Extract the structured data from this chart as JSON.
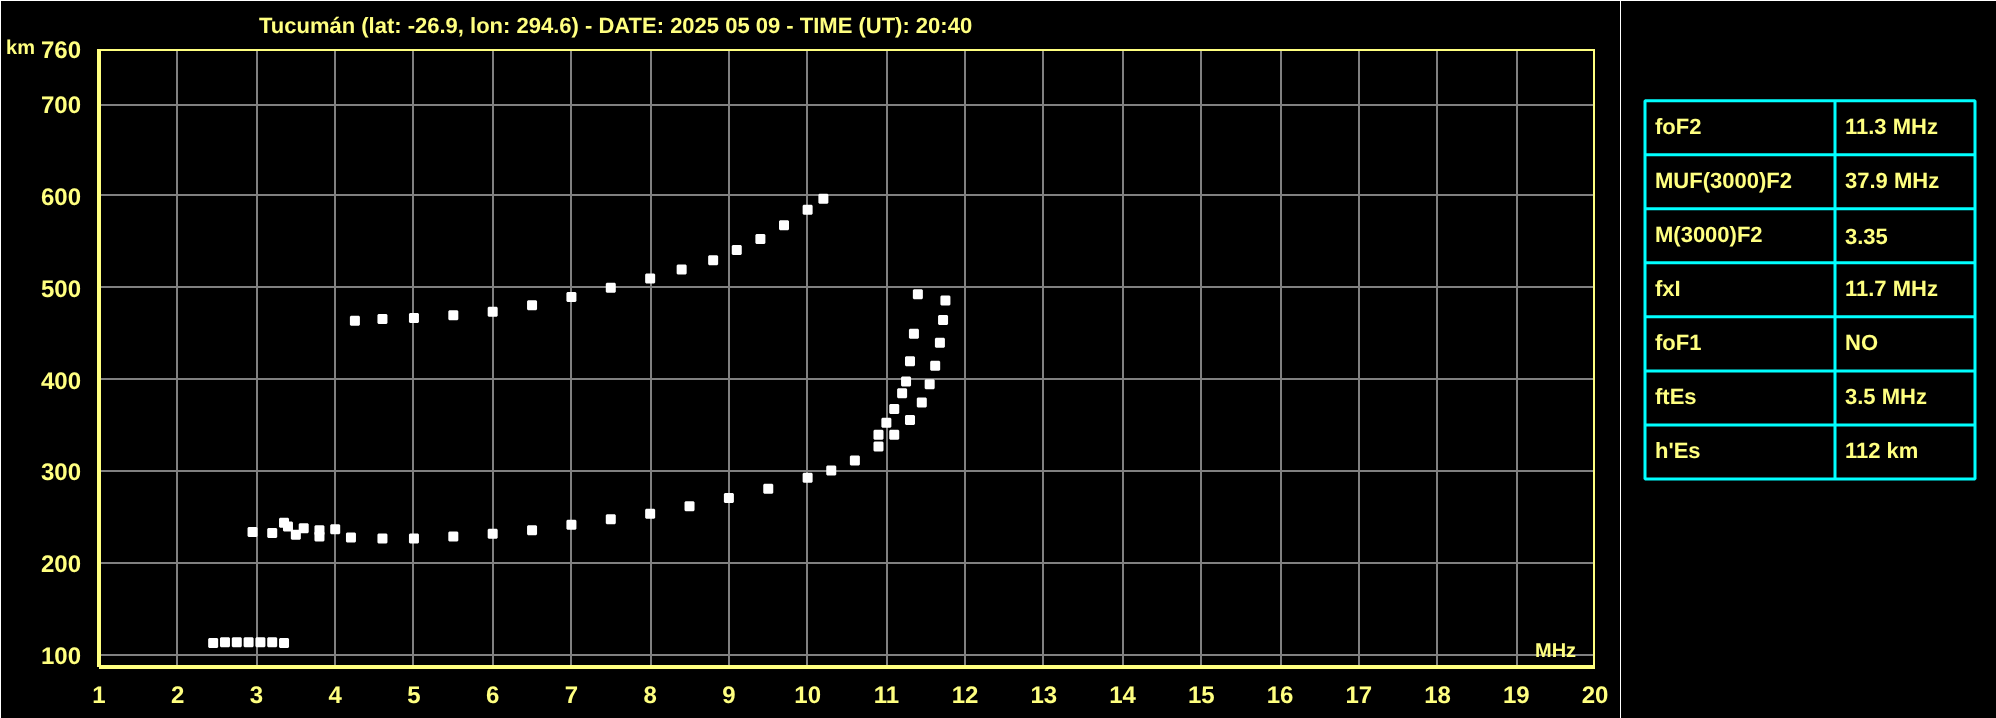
{
  "chart_data": [
    {
      "type": "scatter",
      "title": "Tucumán (lat: -26.9, lon: 294.6) - DATE: 2025 05 09 - TIME (UT): 20:40",
      "xlabel": "MHz",
      "ylabel": "km",
      "xlim": [
        1,
        20
      ],
      "ylim": [
        87,
        760
      ],
      "xticks": [
        1,
        2,
        3,
        4,
        5,
        6,
        7,
        8,
        9,
        10,
        11,
        12,
        13,
        14,
        15,
        16,
        17,
        18,
        19,
        20
      ],
      "yticks": [
        100,
        200,
        300,
        400,
        500,
        600,
        700,
        760
      ],
      "grid": true,
      "marker": "square",
      "series": [
        {
          "color": "#ffffff",
          "x": [
            2.95,
            3.2,
            3.5,
            3.8,
            4.2,
            4.6,
            5.0,
            5.5,
            6.0,
            6.5,
            7.0,
            7.5,
            8.0,
            8.5,
            9.0,
            9.5,
            10.0,
            10.3,
            10.6,
            10.9,
            11.1,
            11.3,
            11.45,
            11.55,
            11.62,
            11.68,
            11.72,
            11.75
          ],
          "values": [
            234,
            233,
            231,
            229,
            228,
            227,
            227,
            229,
            232,
            236,
            242,
            248,
            254,
            262,
            271,
            281,
            293,
            301,
            312,
            327,
            340,
            356,
            375,
            395,
            415,
            440,
            465,
            486
          ]
        },
        {
          "color": "#ffffff",
          "x": [
            10.9,
            11.0,
            11.1,
            11.2,
            11.25,
            11.3,
            11.35,
            11.4
          ],
          "values": [
            340,
            353,
            368,
            385,
            398,
            420,
            450,
            493
          ]
        },
        {
          "color": "#ffffff",
          "x": [
            3.35,
            3.4,
            3.6,
            3.8,
            4.0
          ],
          "values": [
            244,
            240,
            238,
            236,
            237
          ]
        },
        {
          "color": "#ffffff",
          "x": [
            2.45,
            2.6,
            2.75,
            2.9,
            3.05,
            3.2,
            3.35
          ],
          "values": [
            113,
            114,
            114,
            114,
            114,
            114,
            113
          ]
        },
        {
          "color": "#ffffff",
          "x": [
            4.25,
            4.6,
            5.0,
            5.5,
            6.0,
            6.5,
            7.0,
            7.5,
            8.0,
            8.4,
            8.8,
            9.1,
            9.4,
            9.7,
            10.0,
            10.2
          ],
          "values": [
            464,
            466,
            467,
            470,
            474,
            481,
            490,
            500,
            510,
            520,
            530,
            541,
            553,
            568,
            585,
            597
          ]
        }
      ]
    },
    {
      "type": "other",
      "annotations": [
        "foF2",
        "11.3 MHz",
        "MUF(3000)F2",
        "37.9 MHz",
        "M(3000)F2",
        "3.35",
        "fxI",
        "11.7 MHz",
        "foF1",
        "NO",
        "ftEs",
        "3.5 MHz",
        "h'Es",
        "112 km"
      ]
    }
  ]
}
